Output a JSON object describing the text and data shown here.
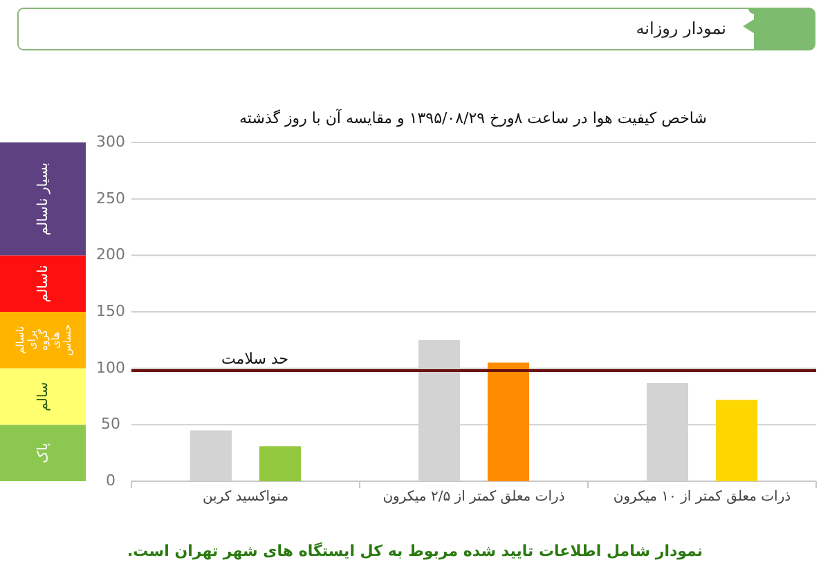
{
  "chart_data": [
    {
      "type": "bar",
      "title": "نمودار روزانه",
      "subtitle": "شاخص کیفیت هوا در ساعت ۸ورخ ۱۳۹۵/۰۸/۲۹ و مقایسه آن با روز گذشته",
      "annotations": [
        "نمودار شامل اطلاعات تایید شده مربوط به کل ایستگاه های شهر تهران است."
      ],
      "categories": [
        "منواکسید کربن",
        "ذرات معلق کمتر از ۲/۵ میکرون",
        "ذرات معلق کمتر از ۱۰ میکرون"
      ],
      "series": [
        {
          "color": "#d3d3d3",
          "values": [
            45,
            125,
            87
          ]
        },
        {
          "colors": [
            "#92c83e",
            "#ff8c00",
            "#ffd700"
          ],
          "values": [
            31,
            105,
            72
          ]
        }
      ],
      "ylim": [
        0,
        300
      ],
      "yticks": [
        0,
        50,
        100,
        150,
        200,
        250,
        300
      ],
      "grid": "y",
      "ref_lines": [
        {
          "axis": "y",
          "value": 98,
          "label": "حد سلامت",
          "color": "#6b1010"
        }
      ]
    },
    {
      "type": "bar",
      "stacked": true,
      "categories": [
        null
      ],
      "ylim": [
        0,
        300
      ],
      "tick_labels": false,
      "series": [
        {
          "name": "پاک",
          "color": "#8cc850",
          "values": [
            50
          ]
        },
        {
          "name": "سالم",
          "color": "#ffff70",
          "values": [
            50
          ]
        },
        {
          "name": "ناسالم برای گروه های حساس",
          "color": "#ffb400",
          "values": [
            50
          ]
        },
        {
          "name": "ناسالم",
          "color": "#ff1010",
          "values": [
            50
          ]
        },
        {
          "name": "بسیار ناسالم",
          "color": "#5d4181",
          "values": [
            100
          ]
        }
      ]
    }
  ]
}
